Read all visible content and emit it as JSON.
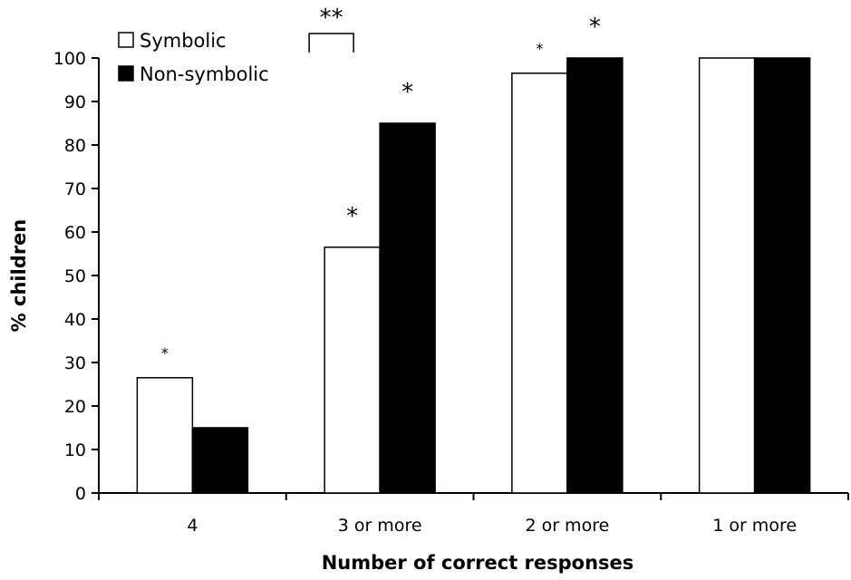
{
  "chart_data": {
    "type": "bar",
    "xlabel": "Number of correct responses",
    "ylabel": "% children",
    "ylim": [
      0,
      100
    ],
    "yticks": [
      0,
      10,
      20,
      30,
      40,
      50,
      60,
      70,
      80,
      90,
      100
    ],
    "categories": [
      "4",
      "3 or more",
      "2 or more",
      "1 or more"
    ],
    "series": [
      {
        "name": "Symbolic",
        "color": "#ffffff",
        "values": [
          26.5,
          56.5,
          96.5,
          100
        ]
      },
      {
        "name": "Non-symbolic",
        "color": "#000000",
        "values": [
          15,
          85,
          100,
          100
        ]
      }
    ],
    "legend": {
      "placement": "top-left"
    },
    "grid": false,
    "annotations": [
      {
        "text": "*",
        "category": 0,
        "series": 0,
        "size": "small"
      },
      {
        "text": "*",
        "category": 1,
        "series": 0,
        "size": "large"
      },
      {
        "text": "*",
        "category": 1,
        "series": 1,
        "size": "large"
      },
      {
        "text": "*",
        "category": 2,
        "series": 0,
        "size": "small"
      },
      {
        "text": "*",
        "category": 2,
        "series": 1,
        "size": "large"
      }
    ],
    "comparison_bracket": {
      "text": "**",
      "from_category": 0,
      "to_category": 1
    }
  }
}
